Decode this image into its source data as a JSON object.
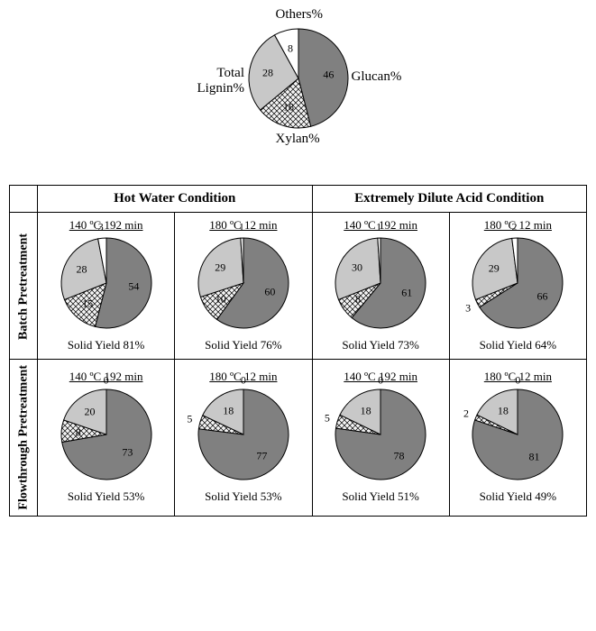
{
  "colors": {
    "glucan": "#808080",
    "xylan_fill": "#f5f5f5",
    "lignin": "#c8c8c8",
    "others": "#ffffff",
    "stroke": "#000000",
    "bg": "#ffffff"
  },
  "top_chart": {
    "labels": {
      "glucan": "Glucan%",
      "xylan": "Xylan%",
      "lignin": "Total\nLignin%",
      "others": "Others%"
    },
    "slices": {
      "glucan": 46,
      "xylan": 18,
      "lignin": 28,
      "others": 8
    },
    "radius": 55
  },
  "headers": {
    "hot_water": "Hot Water Condition",
    "dilute_acid": "Extremely Dilute Acid Condition"
  },
  "rows": {
    "batch": "Batch Pretreatment",
    "flow": "Flowthrough Pretreatment"
  },
  "conditions": {
    "c1": "140 ºC 192 min",
    "c2": "180 ºC 12 min"
  },
  "cells": {
    "batch_hw_c1": {
      "slices": {
        "glucan": 54,
        "xylan": 15,
        "lignin": 28,
        "others": 3
      },
      "yield": "Solid Yield 81%"
    },
    "batch_hw_c2": {
      "slices": {
        "glucan": 60,
        "xylan": 10,
        "lignin": 29,
        "others": 1
      },
      "yield": "Solid Yield 76%"
    },
    "batch_da_c1": {
      "slices": {
        "glucan": 61,
        "xylan": 8,
        "lignin": 30,
        "others": 1
      },
      "yield": "Solid Yield 73%"
    },
    "batch_da_c2": {
      "slices": {
        "glucan": 66,
        "xylan": 3,
        "lignin": 29,
        "others": 2
      },
      "yield": "Solid Yield 64%"
    },
    "flow_hw_c1": {
      "slices": {
        "glucan": 73,
        "xylan": 8,
        "lignin": 20,
        "others": 0
      },
      "yield": "Solid Yield 53%"
    },
    "flow_hw_c2": {
      "slices": {
        "glucan": 77,
        "xylan": 5,
        "lignin": 18,
        "others": 0
      },
      "yield": "Solid Yield 53%"
    },
    "flow_da_c1": {
      "slices": {
        "glucan": 78,
        "xylan": 5,
        "lignin": 18,
        "others": 0
      },
      "yield": "Solid Yield 51%"
    },
    "flow_da_c2": {
      "slices": {
        "glucan": 81,
        "xylan": 2,
        "lignin": 18,
        "others": 0
      },
      "yield": "Solid Yield 49%"
    }
  },
  "small_radius": 50,
  "font": "Times New Roman",
  "title_fontsize": 15,
  "label_fontsize": 13,
  "value_fontsize": 12
}
